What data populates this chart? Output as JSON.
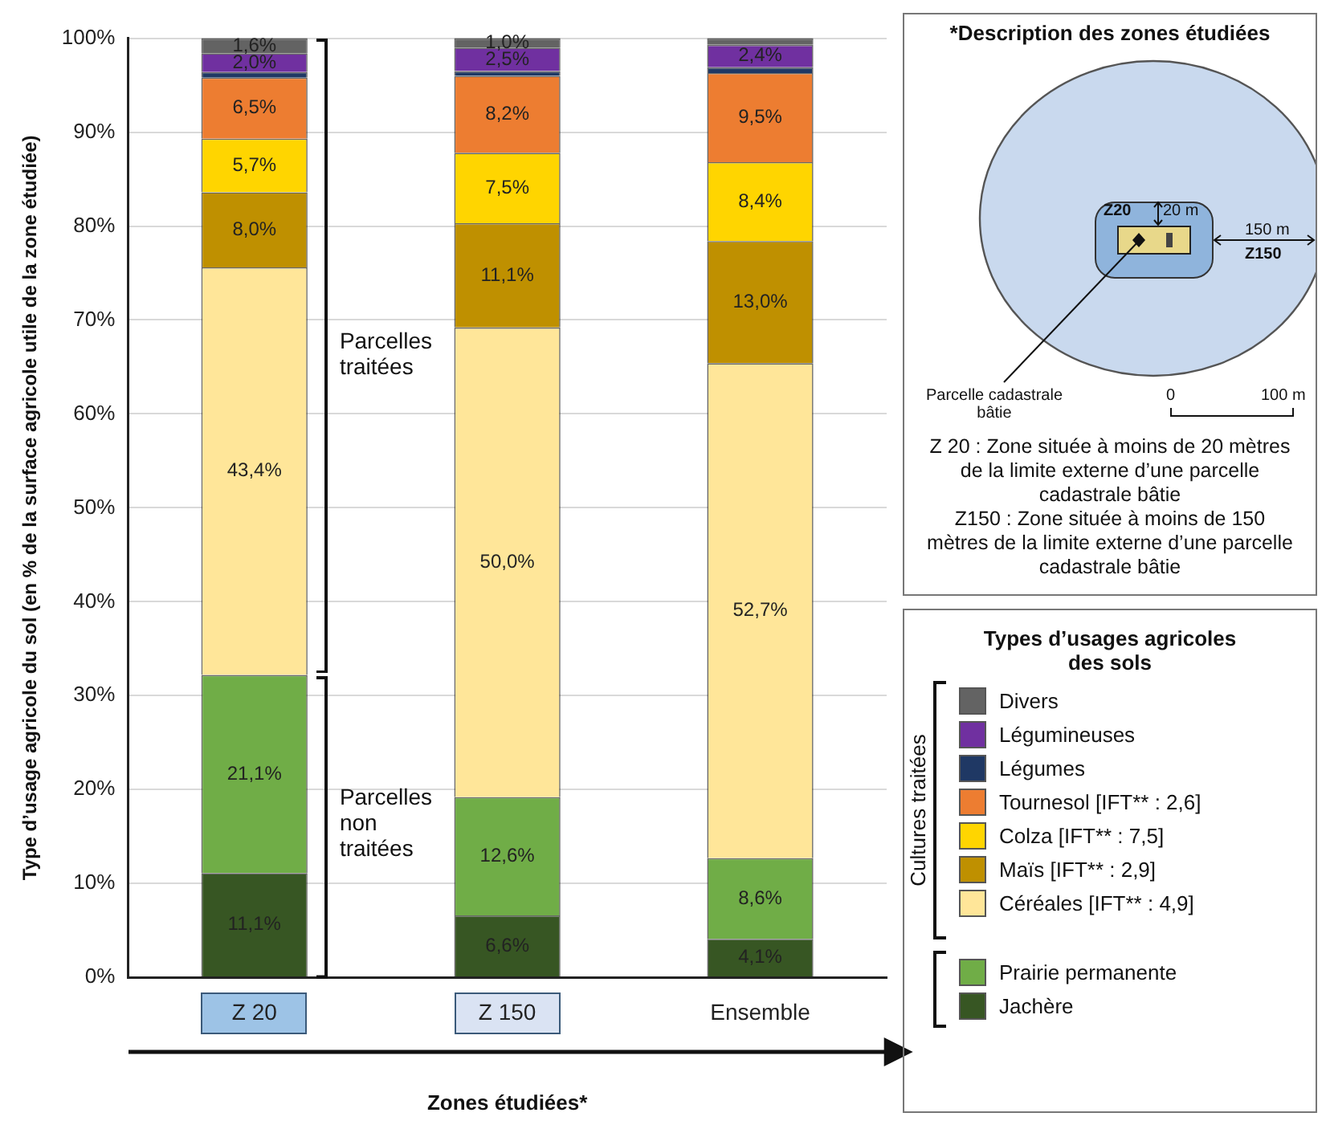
{
  "chart_data": {
    "type": "bar",
    "stacked": true,
    "ylabel": "Type d’usage agricole du sol (en % de la surface agricole utile de la zone étudiée)",
    "xlabel": "Zones étudiées*",
    "legend_title": "Types d’usages agricoles des sols",
    "legend": "right",
    "grid": "y",
    "categories": [
      "Z 20",
      "Z 150",
      "Ensemble"
    ],
    "ylim": [
      0,
      100
    ],
    "yticks": [
      {
        "value": 0,
        "label": "0%"
      },
      {
        "value": 10,
        "label": "10%"
      },
      {
        "value": 20,
        "label": "20%"
      },
      {
        "value": 30,
        "label": "30%"
      },
      {
        "value": 40,
        "label": "40%"
      },
      {
        "value": 50,
        "label": "50%"
      },
      {
        "value": 60,
        "label": "60%"
      },
      {
        "value": 70,
        "label": "70%"
      },
      {
        "value": 80,
        "label": "80%"
      },
      {
        "value": 90,
        "label": "90%"
      },
      {
        "value": 100,
        "label": "100%"
      }
    ],
    "series": [
      {
        "name": "Jachère",
        "color": "#375623",
        "values": [
          11.1,
          6.6,
          4.1
        ],
        "value_labels": [
          "11,1%",
          "6,6%",
          "4,1%"
        ]
      },
      {
        "name": "Prairie permanente",
        "color": "#70ad47",
        "values": [
          21.1,
          12.6,
          8.6
        ],
        "value_labels": [
          "21,1%",
          "12,6%",
          "8,6%"
        ]
      },
      {
        "name": "Céréales [IFT** : 4,9]",
        "color": "#ffe699",
        "values": [
          43.4,
          50.0,
          52.7
        ],
        "value_labels": [
          "43,4%",
          "50,0%",
          "52,7%"
        ]
      },
      {
        "name": "Maïs [IFT** : 2,9]",
        "color": "#bf9000",
        "values": [
          8.0,
          11.1,
          13.0
        ],
        "value_labels": [
          "8,0%",
          "11,1%",
          "13,0%"
        ]
      },
      {
        "name": "Colza [IFT** : 7,5]",
        "color": "#ffd500",
        "values": [
          5.7,
          7.5,
          8.4
        ],
        "value_labels": [
          "5,7%",
          "7,5%",
          "8,4%"
        ]
      },
      {
        "name": "Tournesol [IFT** : 2,6]",
        "color": "#ed7d31",
        "values": [
          6.5,
          8.2,
          9.5
        ],
        "value_labels": [
          "6,5%",
          "8,2%",
          "9,5%"
        ]
      },
      {
        "name": "Légumes",
        "color": "#1f3864",
        "values": [
          0.6,
          0.5,
          0.6
        ],
        "value_labels": [
          null,
          null,
          null
        ]
      },
      {
        "name": "Légumineuses",
        "color": "#7030a0",
        "values": [
          2.0,
          2.5,
          2.4
        ],
        "value_labels": [
          "2,0%",
          "2,5%",
          "2,4%"
        ]
      },
      {
        "name": "Divers",
        "color": "#636363",
        "values": [
          1.6,
          1.0,
          0.7
        ],
        "value_labels": [
          "1,6%",
          "1,0%",
          null
        ]
      }
    ],
    "annotations": [
      "Parcelles traitées",
      "Parcelles non traitées",
      "*Description des zones étudiées",
      "Z20",
      "20 m",
      "150 m",
      "Z150",
      "Parcelle cadastrale bâtie",
      "0",
      "100 m",
      "Z 20 : Zone située à moins de 20 mètres de la limite externe d’une parcelle cadastrale bâtie",
      "Z150 : Zone située à moins de 150 mètres de la limite externe d’une parcelle cadastrale bâtie",
      "Cultures traitées"
    ]
  }
}
